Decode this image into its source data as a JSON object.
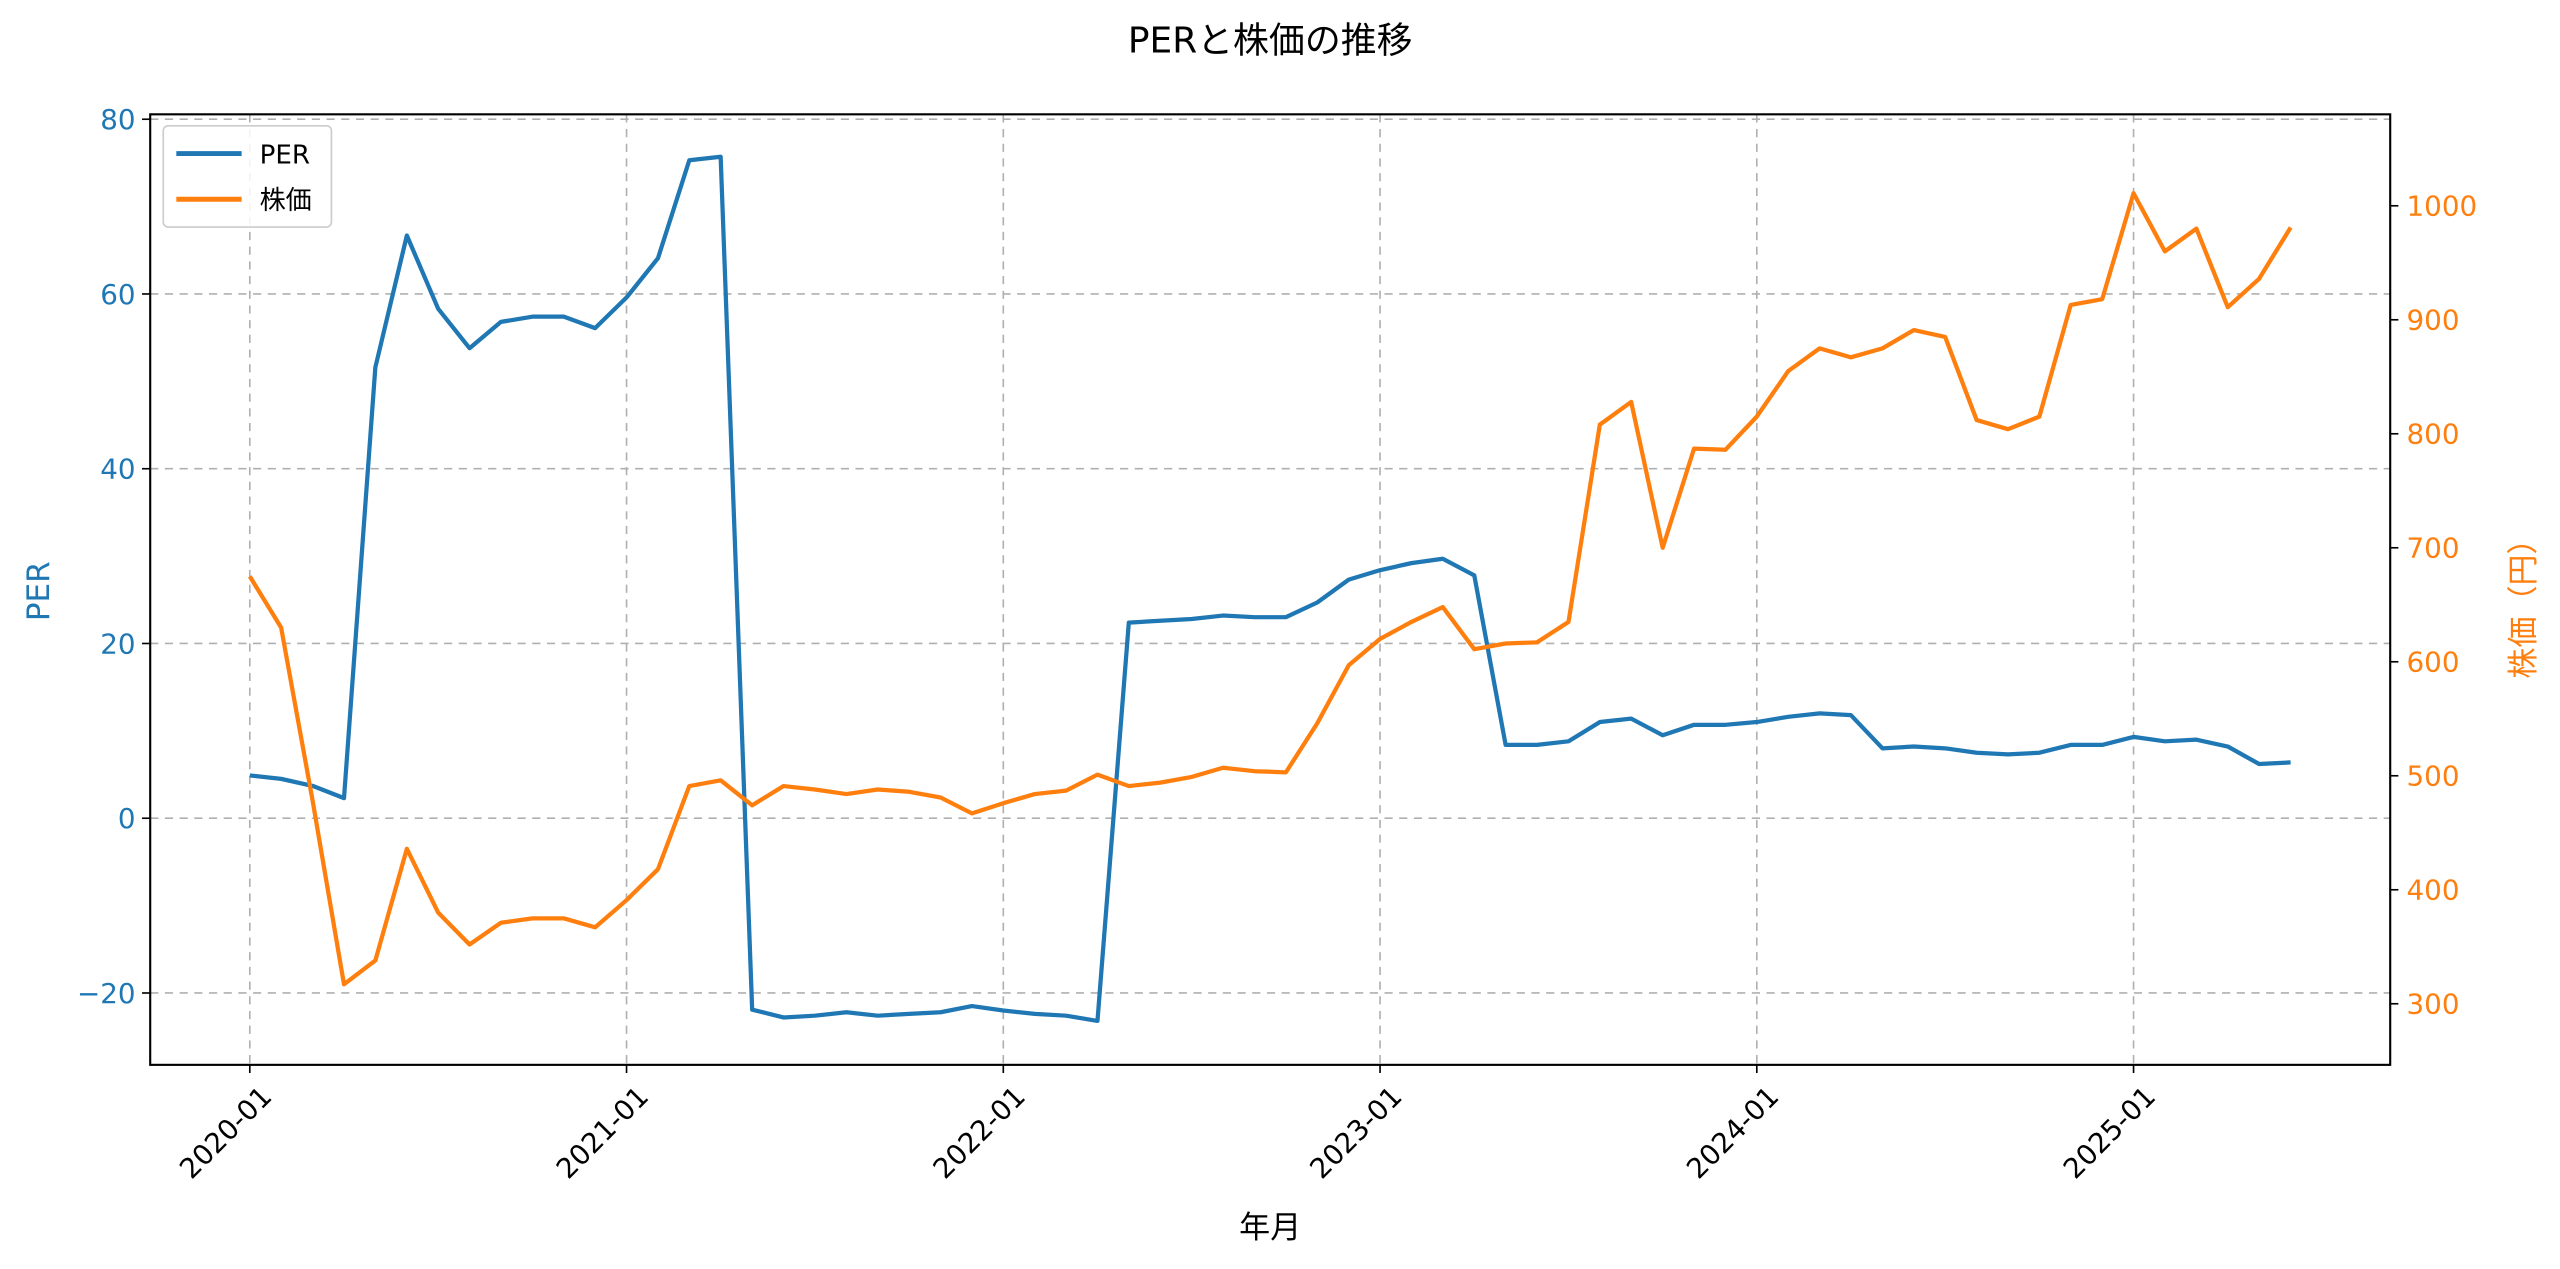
{
  "chart_data": {
    "type": "line",
    "title": "PERと株価の推移",
    "xlabel": "年月",
    "ylabel_left": "PER",
    "ylabel_right": "株価（円）",
    "x_tick_labels": [
      "2020-01",
      "2021-01",
      "2022-01",
      "2023-01",
      "2024-01",
      "2025-01"
    ],
    "y_left_ticks": [
      -20,
      0,
      20,
      40,
      60,
      80
    ],
    "y_right_ticks": [
      300,
      400,
      500,
      600,
      700,
      800,
      900,
      1000
    ],
    "ylim_left": [
      -28.5,
      81
    ],
    "ylim_right": [
      245,
      1078
    ],
    "grid": true,
    "legend_position": "upper left",
    "x": [
      "2020-01",
      "2020-02",
      "2020-03",
      "2020-04",
      "2020-05",
      "2020-06",
      "2020-07",
      "2020-08",
      "2020-09",
      "2020-10",
      "2020-11",
      "2020-12",
      "2021-01",
      "2021-02",
      "2021-03",
      "2021-04",
      "2021-05",
      "2021-06",
      "2021-07",
      "2021-08",
      "2021-09",
      "2021-10",
      "2021-11",
      "2021-12",
      "2022-01",
      "2022-02",
      "2022-03",
      "2022-04",
      "2022-05",
      "2022-06",
      "2022-07",
      "2022-08",
      "2022-09",
      "2022-10",
      "2022-11",
      "2022-12",
      "2023-01",
      "2023-02",
      "2023-03",
      "2023-04",
      "2023-05",
      "2023-06",
      "2023-07",
      "2023-08",
      "2023-09",
      "2023-10",
      "2023-11",
      "2023-12",
      "2024-01",
      "2024-02",
      "2024-03",
      "2024-04",
      "2024-05",
      "2024-06",
      "2024-07",
      "2024-08",
      "2024-09",
      "2024-10",
      "2024-11",
      "2024-12",
      "2025-01",
      "2025-02",
      "2025-03",
      "2025-04",
      "2025-05",
      "2025-06"
    ],
    "series": [
      {
        "name": "PER",
        "axis": "left",
        "color": "#1f77b4",
        "values": [
          4.9,
          4.5,
          3.7,
          2.3,
          51.6,
          66.7,
          58.3,
          53.8,
          56.8,
          57.4,
          57.4,
          56.1,
          59.6,
          64.1,
          75.3,
          75.7,
          -21.9,
          -22.8,
          -22.6,
          -22.2,
          -22.6,
          -22.4,
          -22.2,
          -21.5,
          -22.0,
          -22.4,
          -22.6,
          -23.2,
          22.4,
          22.6,
          22.8,
          23.2,
          23.0,
          23.0,
          24.7,
          27.3,
          28.4,
          29.2,
          29.7,
          27.8,
          8.4,
          8.4,
          8.8,
          11.0,
          11.4,
          9.5,
          10.7,
          10.7,
          11.0,
          11.6,
          12.0,
          11.8,
          8.0,
          8.2,
          8.0,
          7.5,
          7.3,
          7.5,
          8.4,
          8.4,
          9.3,
          8.8,
          9.0,
          8.2,
          6.2,
          6.4
        ]
      },
      {
        "name": "株価",
        "axis": "right",
        "color": "#ff7f0e",
        "values": [
          675,
          630,
          478,
          317,
          338,
          436,
          380,
          352,
          371,
          375,
          375,
          367,
          391,
          418,
          491,
          496,
          474,
          491,
          488,
          484,
          488,
          486,
          481,
          467,
          476,
          484,
          487,
          501,
          491,
          494,
          499,
          507,
          504,
          503,
          546,
          597,
          620,
          635,
          648,
          611,
          616,
          617,
          635,
          808,
          828,
          700,
          787,
          786,
          815,
          855,
          875,
          867,
          875,
          891,
          885,
          812,
          804,
          815,
          913,
          918,
          1011,
          960,
          980,
          911,
          936,
          981
        ]
      }
    ]
  },
  "colors": {
    "per": "#1f77b4",
    "price": "#ff7f0e",
    "grid": "#b0b0b0",
    "axis": "#000000"
  }
}
